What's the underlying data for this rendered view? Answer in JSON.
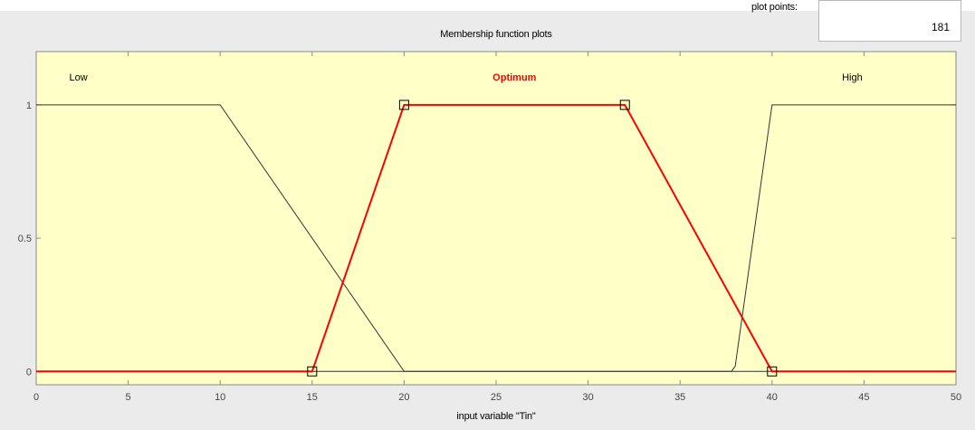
{
  "plot_points": {
    "label": "plot points:",
    "value": "181"
  },
  "colors": {
    "panel_bg": "#ebebeb",
    "axes_bg": "#ffffc8",
    "inactive_mf": "#333333",
    "active_mf": "#ff0000"
  },
  "chart_data": {
    "type": "line",
    "title": "Membership function plots",
    "xlabel": "input variable \"Tin\"",
    "ylabel": "",
    "xlim": [
      0,
      50
    ],
    "ylim": [
      -0.05,
      1.2
    ],
    "xticks": [
      0,
      5,
      10,
      15,
      20,
      25,
      30,
      35,
      40,
      45,
      50
    ],
    "yticks": [
      0,
      0.5,
      1
    ],
    "xtick_labels": [
      "0",
      "5",
      "10",
      "15",
      "20",
      "25",
      "30",
      "35",
      "40",
      "45",
      "50"
    ],
    "ytick_labels": [
      "0",
      "0.5",
      "1"
    ],
    "grid": false,
    "series": [
      {
        "name": "Low",
        "active": false,
        "x": [
          0,
          10,
          20,
          50
        ],
        "y": [
          1,
          1,
          0,
          0
        ]
      },
      {
        "name": "Optimum",
        "active": true,
        "x": [
          0,
          15,
          20,
          32,
          40,
          50
        ],
        "y": [
          0,
          0,
          1,
          1,
          0,
          0
        ],
        "handles_x": [
          15,
          20,
          32,
          40
        ],
        "handles_y": [
          0,
          1,
          1,
          0
        ]
      },
      {
        "name": "High",
        "active": false,
        "x": [
          0,
          37.8,
          38,
          40,
          50
        ],
        "y": [
          0,
          0,
          0.02,
          1,
          1
        ]
      }
    ]
  }
}
